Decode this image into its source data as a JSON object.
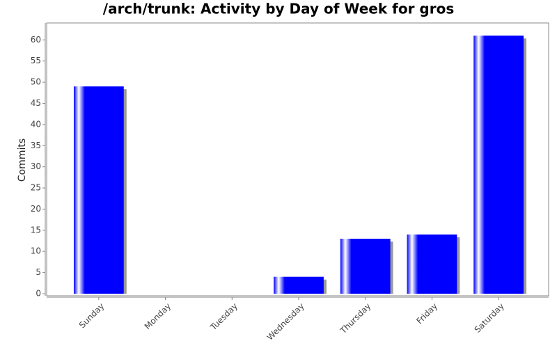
{
  "chart_data": {
    "type": "bar",
    "title": "/arch/trunk: Activity by Day of Week for gros",
    "y_label": "Commits",
    "categories": [
      "Sunday",
      "Monday",
      "Tuesday",
      "Wednesday",
      "Thursday",
      "Friday",
      "Saturday"
    ],
    "values": [
      49,
      0,
      0,
      4,
      13,
      14,
      61
    ],
    "color": "#0000ff",
    "ylim": [
      0,
      64
    ],
    "yticks": [
      0,
      5,
      10,
      15,
      20,
      25,
      30,
      35,
      40,
      45,
      50,
      55,
      60
    ],
    "grid": false
  }
}
